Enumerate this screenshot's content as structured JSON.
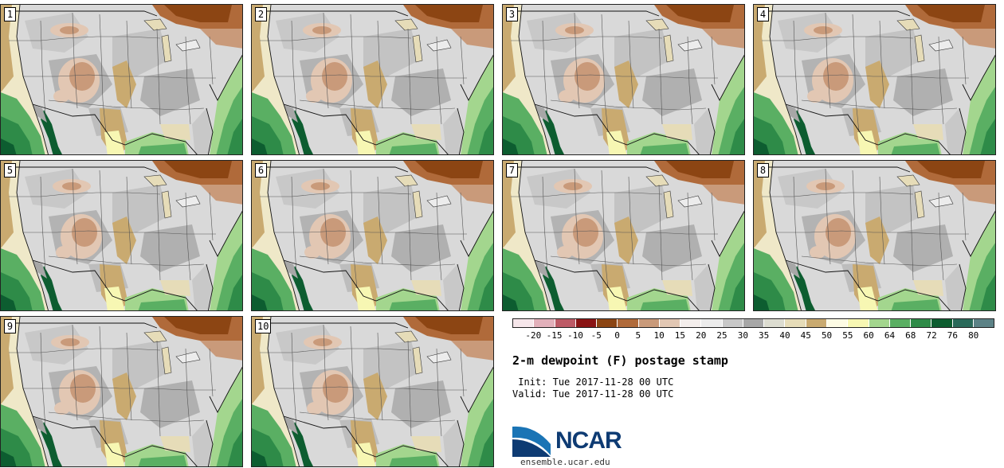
{
  "stamps": [
    {
      "label": "1"
    },
    {
      "label": "2"
    },
    {
      "label": "3"
    },
    {
      "label": "4"
    },
    {
      "label": "5"
    },
    {
      "label": "6"
    },
    {
      "label": "7"
    },
    {
      "label": "8"
    },
    {
      "label": "9"
    },
    {
      "label": "10"
    }
  ],
  "legend": {
    "ticks": [
      "-20",
      "-15",
      "-10",
      "-5",
      "0",
      "5",
      "10",
      "15",
      "20",
      "25",
      "30",
      "35",
      "40",
      "45",
      "50",
      "55",
      "60",
      "64",
      "68",
      "72",
      "76",
      "80"
    ],
    "colors": [
      "#f6e6ea",
      "#e2b0ba",
      "#bd5a66",
      "#8a1414",
      "#8c4513",
      "#b06a3a",
      "#c99a7a",
      "#e2c7b3",
      "#f4eeec",
      "#ececec",
      "#c8c8c8",
      "#a7a7a7",
      "#dcdcd0",
      "#e6dcb8",
      "#c9aa70",
      "#fdfbe4",
      "#f7f7b3",
      "#a3d68e",
      "#5aaf63",
      "#2e8b48",
      "#0d5d30",
      "#2a6a5a",
      "#5c8286"
    ]
  },
  "title": "2-m dewpoint (F) postage stamp",
  "init": {
    "label": " Init:",
    "value": "Tue 2017-11-28 00 UTC"
  },
  "valid": {
    "label": "Valid:",
    "value": "Tue 2017-11-28 00 UTC"
  },
  "logo": {
    "text": "NCAR",
    "url": "ensemble.ucar.edu"
  },
  "icons": {
    "logo": "ncar-swoosh-icon"
  }
}
